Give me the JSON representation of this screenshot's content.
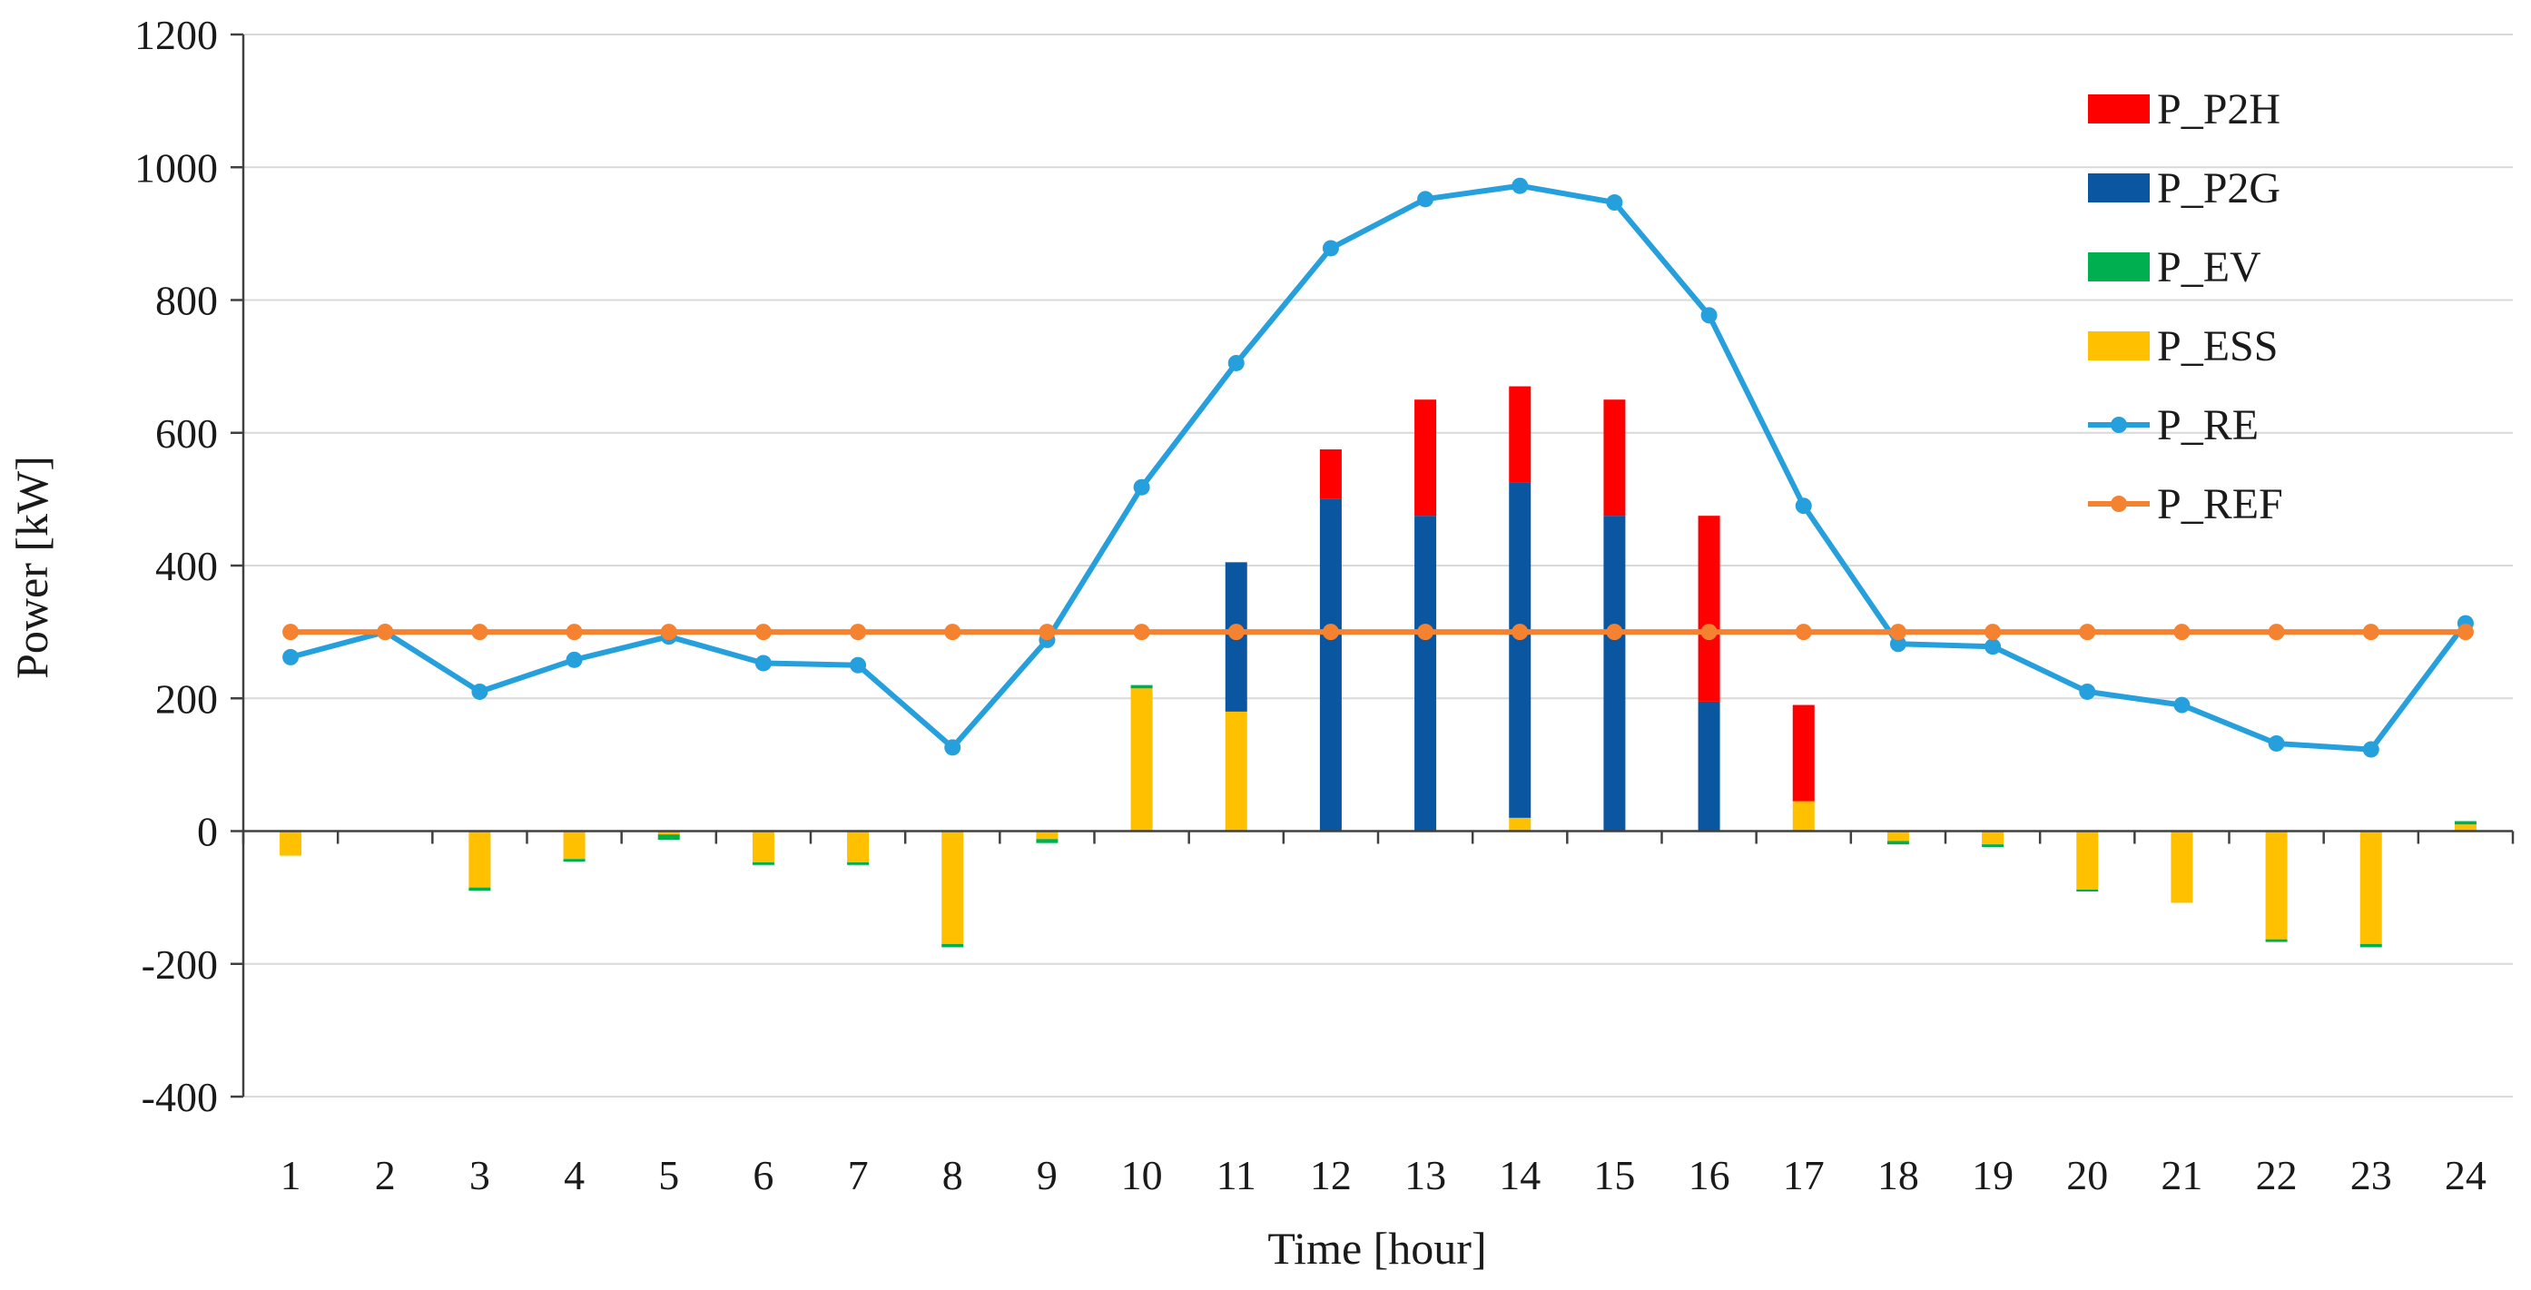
{
  "chart_data": {
    "type": "bar",
    "subtype": "stacked bar with line overlay",
    "title": "",
    "xlabel": "Time [hour]",
    "ylabel": "Power [kW]",
    "ylim": [
      -400,
      1200
    ],
    "yticks": [
      -400,
      -200,
      0,
      200,
      400,
      600,
      800,
      1000,
      1200
    ],
    "grid": true,
    "legend_position": "top-right",
    "categories": [
      "1",
      "2",
      "3",
      "4",
      "5",
      "6",
      "7",
      "8",
      "9",
      "10",
      "11",
      "12",
      "13",
      "14",
      "15",
      "16",
      "17",
      "18",
      "19",
      "20",
      "21",
      "22",
      "23",
      "24"
    ],
    "bar_series": [
      {
        "name": "P_ESS",
        "color": "#ffc000",
        "values": [
          -37,
          0,
          -85,
          -42,
          -5,
          -47,
          -47,
          -170,
          -12,
          215,
          180,
          0,
          0,
          20,
          0,
          0,
          45,
          -15,
          -20,
          -88,
          -108,
          -163,
          -170,
          10
        ]
      },
      {
        "name": "P_EV",
        "color": "#00b050",
        "values": [
          0,
          0,
          -5,
          -4,
          -8,
          -4,
          -4,
          -5,
          -6,
          5,
          0,
          0,
          0,
          0,
          0,
          0,
          0,
          -5,
          -4,
          -3,
          0,
          -4,
          -5,
          5
        ]
      },
      {
        "name": "P_P2G",
        "color": "#0a56a0",
        "values": [
          0,
          0,
          0,
          0,
          0,
          0,
          0,
          0,
          0,
          0,
          225,
          500,
          475,
          505,
          475,
          195,
          0,
          0,
          0,
          0,
          0,
          0,
          0,
          0
        ]
      },
      {
        "name": "P_P2H",
        "color": "#ff0000",
        "values": [
          0,
          0,
          0,
          0,
          0,
          0,
          0,
          0,
          0,
          0,
          0,
          75,
          175,
          145,
          175,
          280,
          145,
          0,
          0,
          0,
          0,
          0,
          0,
          0
        ]
      }
    ],
    "line_series": [
      {
        "name": "P_RE",
        "color": "#25a0dc",
        "values": [
          262,
          300,
          210,
          258,
          293,
          253,
          250,
          126,
          288,
          518,
          705,
          878,
          952,
          972,
          947,
          777,
          490,
          282,
          278,
          210,
          190,
          132,
          123,
          313
        ]
      },
      {
        "name": "P_REF",
        "color": "#f58231",
        "values": [
          300,
          300,
          300,
          300,
          300,
          300,
          300,
          300,
          300,
          300,
          300,
          300,
          300,
          300,
          300,
          300,
          300,
          300,
          300,
          300,
          300,
          300,
          300,
          300
        ]
      }
    ],
    "legend": [
      {
        "name": "P_P2H",
        "kind": "bar",
        "color": "#ff0000"
      },
      {
        "name": "P_P2G",
        "kind": "bar",
        "color": "#0a56a0"
      },
      {
        "name": "P_EV",
        "kind": "bar",
        "color": "#00b050"
      },
      {
        "name": "P_ESS",
        "kind": "bar",
        "color": "#ffc000"
      },
      {
        "name": "P_RE",
        "kind": "line",
        "color": "#25a0dc"
      },
      {
        "name": "P_REF",
        "kind": "line",
        "color": "#f58231"
      }
    ]
  }
}
